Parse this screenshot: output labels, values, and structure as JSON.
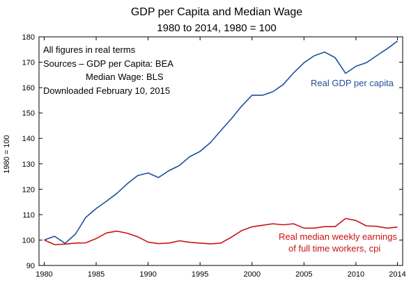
{
  "chart_data": {
    "type": "line",
    "title": "GDP per Capita and Median Wage",
    "subtitle": "1980 to 2014, 1980 = 100",
    "ylabel": "1980 = 100",
    "xlabel": "",
    "xlim": [
      1979.5,
      2014.5
    ],
    "ylim": [
      90,
      180
    ],
    "x_ticks": [
      1980,
      1985,
      1990,
      1995,
      2000,
      2005,
      2010,
      2014
    ],
    "y_ticks": [
      90,
      100,
      110,
      120,
      130,
      140,
      150,
      160,
      170,
      180
    ],
    "grid": false,
    "notes": [
      "All figures in real terms",
      "Sources – GDP per Capita:  BEA",
      "Median Wage:  BLS",
      "Downloaded February 10, 2015"
    ],
    "x": [
      1980,
      1981,
      1982,
      1983,
      1984,
      1985,
      1986,
      1987,
      1988,
      1989,
      1990,
      1991,
      1992,
      1993,
      1994,
      1995,
      1996,
      1997,
      1998,
      1999,
      2000,
      2001,
      2002,
      2003,
      2004,
      2005,
      2006,
      2007,
      2008,
      2009,
      2010,
      2011,
      2012,
      2013,
      2014
    ],
    "series": [
      {
        "name": "Real GDP per capita",
        "color": "#1f4e9a",
        "values": [
          100,
          101.5,
          98.7,
          102.3,
          108.9,
          112.4,
          115.3,
          118.4,
          122.2,
          125.4,
          126.4,
          124.6,
          127.3,
          129.3,
          132.8,
          134.9,
          138.4,
          143.1,
          147.7,
          152.7,
          157,
          157,
          158.4,
          161.2,
          165.8,
          169.8,
          172.6,
          174,
          171.8,
          165.6,
          168.4,
          169.8,
          172.6,
          175.3,
          178.3
        ],
        "label_lines": [
          "Real GDP per capita"
        ]
      },
      {
        "name": "Real median weekly earnings of full time workers, cpi",
        "color": "#cc1111",
        "values": [
          100,
          98.2,
          98.4,
          98.8,
          98.9,
          100.6,
          102.8,
          103.5,
          102.7,
          101.3,
          99.2,
          98.6,
          98.8,
          99.7,
          99.1,
          98.8,
          98.5,
          98.8,
          101.1,
          103.7,
          105.2,
          105.8,
          106.4,
          106,
          106.4,
          104.7,
          104.7,
          105.3,
          105.3,
          108.5,
          107.7,
          105.6,
          105.4,
          104.7,
          105.1
        ],
        "label_lines": [
          "Real median weekly earnings",
          "of full time workers, cpi"
        ]
      }
    ]
  }
}
